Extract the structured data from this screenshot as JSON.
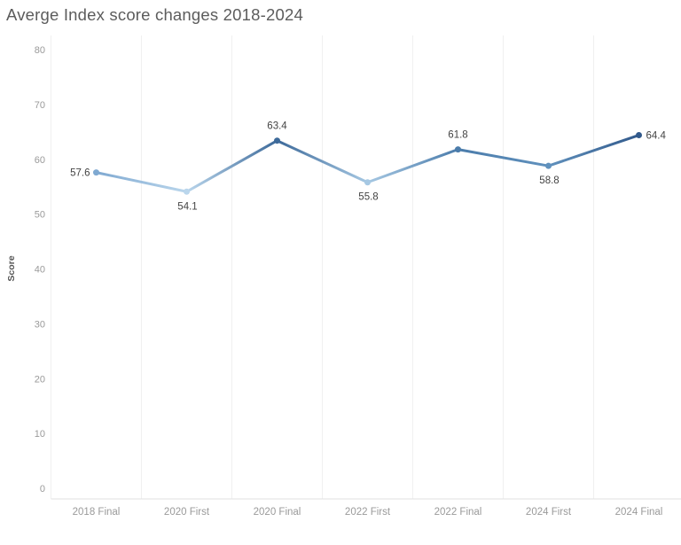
{
  "chart_data": {
    "type": "line",
    "title": "Averge Index score changes 2018-2024",
    "categories": [
      "2018 Final",
      "2020 First",
      "2020 Final",
      "2022 First",
      "2022 Final",
      "2024 First",
      "2024 Final"
    ],
    "values": [
      57.6,
      54.1,
      63.4,
      55.8,
      61.8,
      58.8,
      64.4
    ],
    "data_labels": [
      "57.6",
      "54.1",
      "63.4",
      "55.8",
      "61.8",
      "58.8",
      "64.4"
    ],
    "point_colors": [
      "#7fa9d1",
      "#bad6ec",
      "#3d6a9a",
      "#a6c8e3",
      "#4b7cab",
      "#6091bd",
      "#31598b"
    ],
    "label_placements": [
      "left",
      "below",
      "above",
      "below",
      "above",
      "below",
      "right"
    ],
    "xlabel": "",
    "ylabel": "Score",
    "ylim": [
      0,
      80
    ],
    "yticks": [
      0,
      10,
      20,
      30,
      40,
      50,
      60,
      70,
      80
    ],
    "grid": "vertical",
    "legend": "none",
    "color_encoding": "line color shades by score: light blue = low, dark blue = high"
  },
  "colors": {
    "background": "#ffffff",
    "gridline": "#f0f0f0",
    "axis_line": "#e1e1e1",
    "tick_label": "#9a9a9a",
    "data_label": "#434343",
    "title": "#5c5c5c",
    "axis_title": "#555555"
  }
}
